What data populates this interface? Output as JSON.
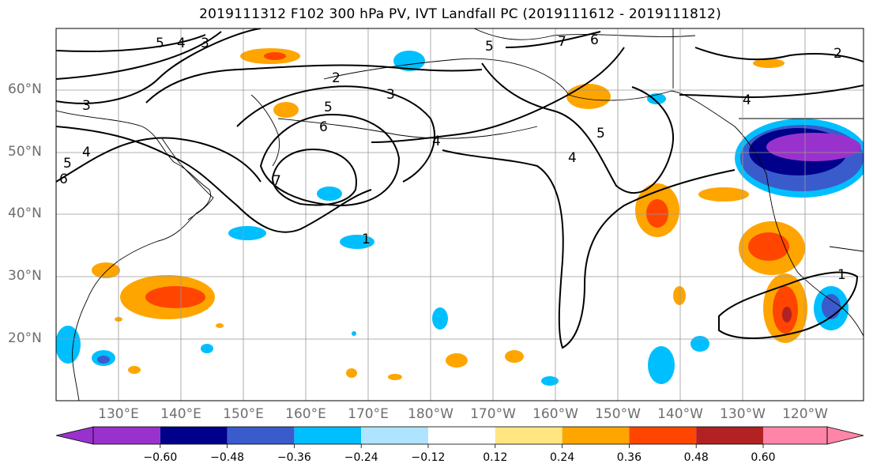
{
  "title": "2019111312 F102 300 hPa PV, IVT Landfall PC (2019111612 - 2019111812)",
  "lat_labels": [
    "60°N",
    "50°N",
    "40°N",
    "30°N",
    "20°N"
  ],
  "lon_labels": [
    "130°E",
    "140°E",
    "150°E",
    "160°E",
    "170°E",
    "180°W",
    "170°W",
    "160°W",
    "150°W",
    "140°W",
    "130°W",
    "120°W"
  ],
  "colorbar": {
    "ticks": [
      "−0.60",
      "−0.48",
      "−0.36",
      "−0.24",
      "−0.12",
      "0.12",
      "0.24",
      "0.36",
      "0.48",
      "0.60"
    ],
    "colors": [
      "#9932CC",
      "#00008B",
      "#3A5BCC",
      "#00BFFF",
      "#AEE4FF",
      "#FFFFFF",
      "#FFE680",
      "#FFA500",
      "#FF4500",
      "#B22222",
      "#FF85A8"
    ]
  },
  "contour_labels": [
    "5",
    "4",
    "3",
    "3",
    "2",
    "5",
    "6",
    "7",
    "1",
    "3",
    "4",
    "4",
    "5",
    "7",
    "6",
    "5",
    "4",
    "4",
    "2",
    "1",
    "6",
    "5"
  ]
}
